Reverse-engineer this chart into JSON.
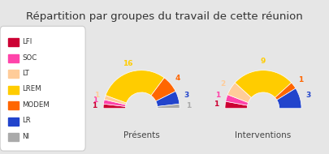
{
  "title": "Répartition par groupes du travail de cette réunion",
  "groups": [
    "LFI",
    "SOC",
    "LT",
    "LREM",
    "MODEM",
    "LR",
    "NI"
  ],
  "colors": [
    "#cc0033",
    "#ff44aa",
    "#ffcc99",
    "#ffcc00",
    "#ff6600",
    "#2244cc",
    "#aaaaaa"
  ],
  "presents": [
    1,
    1,
    1,
    16,
    4,
    3,
    1
  ],
  "interventions": [
    1,
    1,
    2,
    9,
    1,
    3,
    0
  ],
  "label_colors": [
    "#cc0033",
    "#ff44aa",
    "#ffcc99",
    "#ffcc00",
    "#ff6600",
    "#2244cc",
    "#aaaaaa"
  ],
  "bg_color": "#e6e6e6",
  "subtitle1": "Présents",
  "subtitle2": "Interventions",
  "title_fontsize": 9.5,
  "label_fontsize": 6.5
}
